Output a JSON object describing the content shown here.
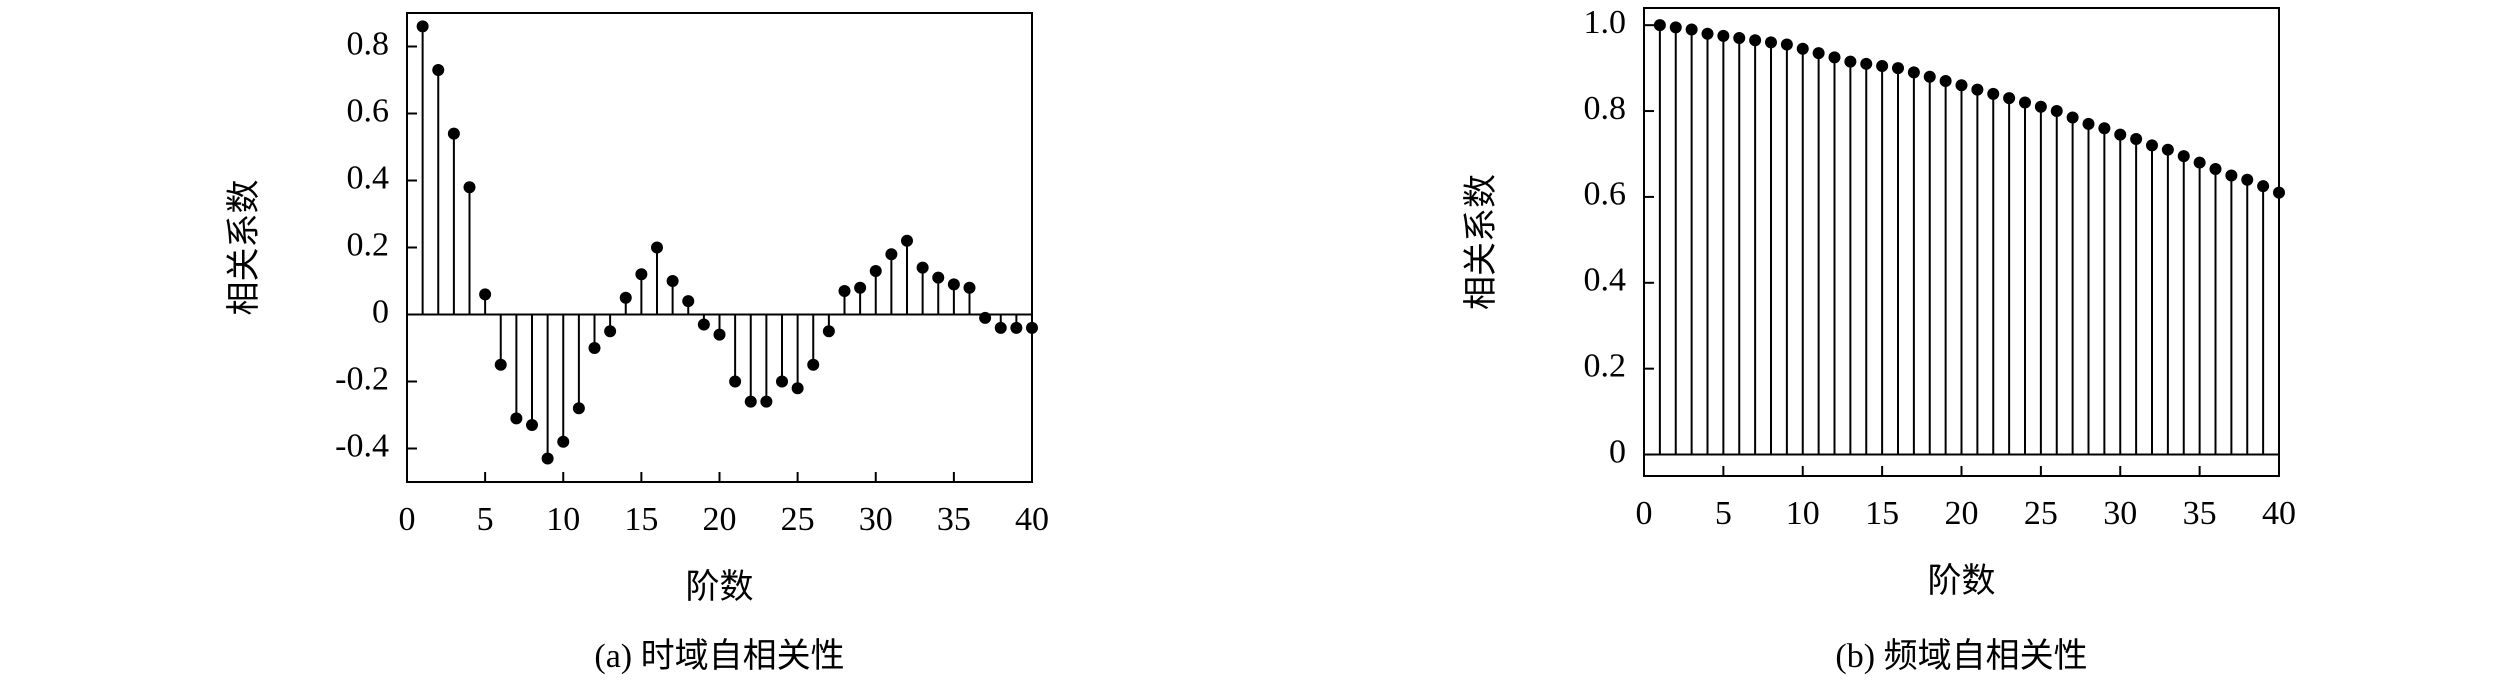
{
  "chart_data": [
    {
      "type": "stem",
      "caption": "(a) 时域自相关性",
      "xlabel": "阶数",
      "ylabel": "相关系数",
      "color": "#000000",
      "x": [
        1,
        2,
        3,
        4,
        5,
        6,
        7,
        8,
        9,
        10,
        11,
        12,
        13,
        14,
        15,
        16,
        17,
        18,
        19,
        20,
        21,
        22,
        23,
        24,
        25,
        26,
        27,
        28,
        29,
        30,
        31,
        32,
        33,
        34,
        35,
        36,
        37,
        38,
        39,
        40
      ],
      "values": [
        0.86,
        0.73,
        0.54,
        0.38,
        0.06,
        -0.15,
        -0.31,
        -0.33,
        -0.43,
        -0.38,
        -0.28,
        -0.1,
        -0.05,
        0.05,
        0.12,
        0.2,
        0.1,
        0.04,
        -0.03,
        -0.06,
        -0.2,
        -0.26,
        -0.26,
        -0.2,
        -0.22,
        -0.15,
        -0.05,
        0.07,
        0.08,
        0.13,
        0.18,
        0.22,
        0.14,
        0.11,
        0.09,
        0.08,
        -0.01,
        -0.04,
        -0.04,
        -0.04
      ],
      "xlim": [
        0,
        40
      ],
      "xticks": [
        0,
        5,
        10,
        15,
        20,
        25,
        30,
        35,
        40
      ],
      "ylim": [
        -0.5,
        0.9
      ],
      "yticks": [
        -0.4,
        -0.2,
        0,
        0.2,
        0.4,
        0.6,
        0.8
      ]
    },
    {
      "type": "stem",
      "caption": "(b) 频域自相关性",
      "xlabel": "阶数",
      "ylabel": "相关系数",
      "color": "#000000",
      "x": [
        1,
        2,
        3,
        4,
        5,
        6,
        7,
        8,
        9,
        10,
        11,
        12,
        13,
        14,
        15,
        16,
        17,
        18,
        19,
        20,
        21,
        22,
        23,
        24,
        25,
        26,
        27,
        28,
        29,
        30,
        31,
        32,
        33,
        34,
        35,
        36,
        37,
        38,
        39,
        40
      ],
      "values": [
        1.0,
        0.995,
        0.99,
        0.98,
        0.975,
        0.97,
        0.965,
        0.96,
        0.955,
        0.945,
        0.935,
        0.925,
        0.915,
        0.91,
        0.905,
        0.9,
        0.89,
        0.88,
        0.87,
        0.86,
        0.85,
        0.84,
        0.83,
        0.82,
        0.81,
        0.8,
        0.785,
        0.77,
        0.76,
        0.745,
        0.735,
        0.72,
        0.71,
        0.695,
        0.68,
        0.665,
        0.65,
        0.64,
        0.625,
        0.61
      ],
      "xlim": [
        0,
        40
      ],
      "xticks": [
        0,
        5,
        10,
        15,
        20,
        25,
        30,
        35,
        40
      ],
      "ylim": [
        -0.05,
        1.04
      ],
      "yticks": [
        0,
        0.2,
        0.4,
        0.6,
        0.8,
        {
          "value": 1,
          "label": "1.0"
        }
      ]
    }
  ]
}
